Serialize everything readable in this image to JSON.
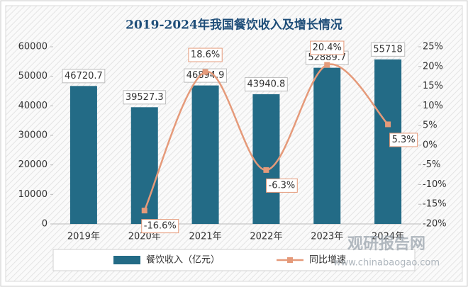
{
  "chart_data": {
    "type": "combo",
    "title": "2019-2024年我国餐饮收入及增长情况",
    "categories": [
      "2019年",
      "2020年",
      "2021年",
      "2022年",
      "2023年",
      "2024年"
    ],
    "series": [
      {
        "name": "餐饮收入（亿元）",
        "type": "bar",
        "color": "#236b86",
        "values": [
          46720.7,
          39527.3,
          46894.9,
          43940.8,
          52889.7,
          55718
        ]
      },
      {
        "name": "同比增速",
        "type": "line",
        "axis": "y2",
        "color": "#e59a7a",
        "values": [
          null,
          -16.6,
          18.6,
          -6.3,
          20.4,
          5.3
        ],
        "value_labels": [
          null,
          "-16.6%",
          "18.6%",
          "-6.3%",
          "20.4%",
          "5.3%"
        ]
      }
    ],
    "ylim": [
      0,
      60000
    ],
    "yticks": [
      0,
      10000,
      20000,
      30000,
      40000,
      50000,
      60000
    ],
    "y2lim": [
      -20,
      25
    ],
    "y2ticks": [
      {
        "value": -20,
        "label": "-20%"
      },
      {
        "value": -15,
        "label": "-15%"
      },
      {
        "value": -10,
        "label": "-10%"
      },
      {
        "value": -5,
        "label": "-5%"
      },
      {
        "value": 0,
        "label": "0%"
      },
      {
        "value": 5,
        "label": "5%"
      },
      {
        "value": 10,
        "label": "10%"
      },
      {
        "value": 15,
        "label": "15%"
      },
      {
        "value": 20,
        "label": "20%"
      },
      {
        "value": 25,
        "label": "25%"
      }
    ],
    "legend": "bottom",
    "watermark": {
      "title": "观研报告网",
      "url": "www.chinabaogao.com"
    }
  }
}
